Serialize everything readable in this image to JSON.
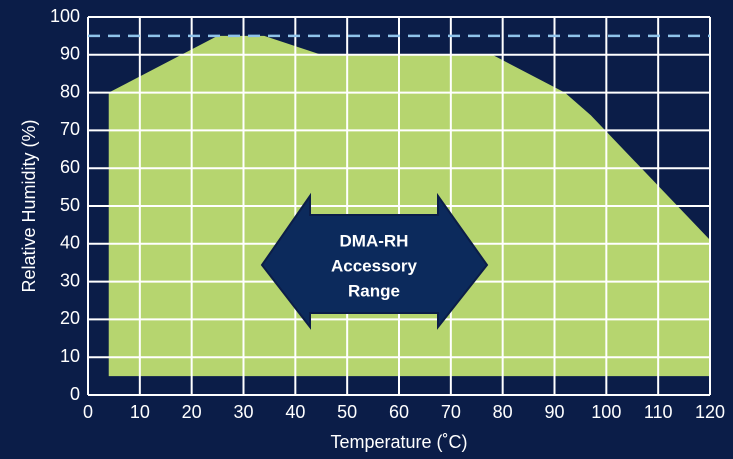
{
  "chart_data": {
    "type": "area",
    "xlabel": "Temperature (˚C)",
    "ylabel": "Relative Humidity (%)",
    "x": [
      4,
      4,
      25,
      34,
      45,
      78,
      92,
      97,
      120,
      120
    ],
    "series": [
      {
        "color": "#b6d56f",
        "values": [
          5,
          80,
          95,
          95,
          90,
          90,
          80,
          74,
          41,
          5
        ]
      }
    ],
    "reference_line": {
      "value": 95,
      "color": "#8fc3ea"
    },
    "annotation": [
      "DMA-RH",
      "Accessory",
      "Range"
    ],
    "xlim": [
      0,
      120
    ],
    "ylim": [
      0,
      100
    ],
    "xticks": [
      0,
      10,
      20,
      30,
      40,
      50,
      60,
      70,
      80,
      90,
      100,
      110,
      120
    ],
    "yticks": [
      0,
      10,
      20,
      30,
      40,
      50,
      60,
      70,
      80,
      90,
      100
    ],
    "grid": true
  }
}
